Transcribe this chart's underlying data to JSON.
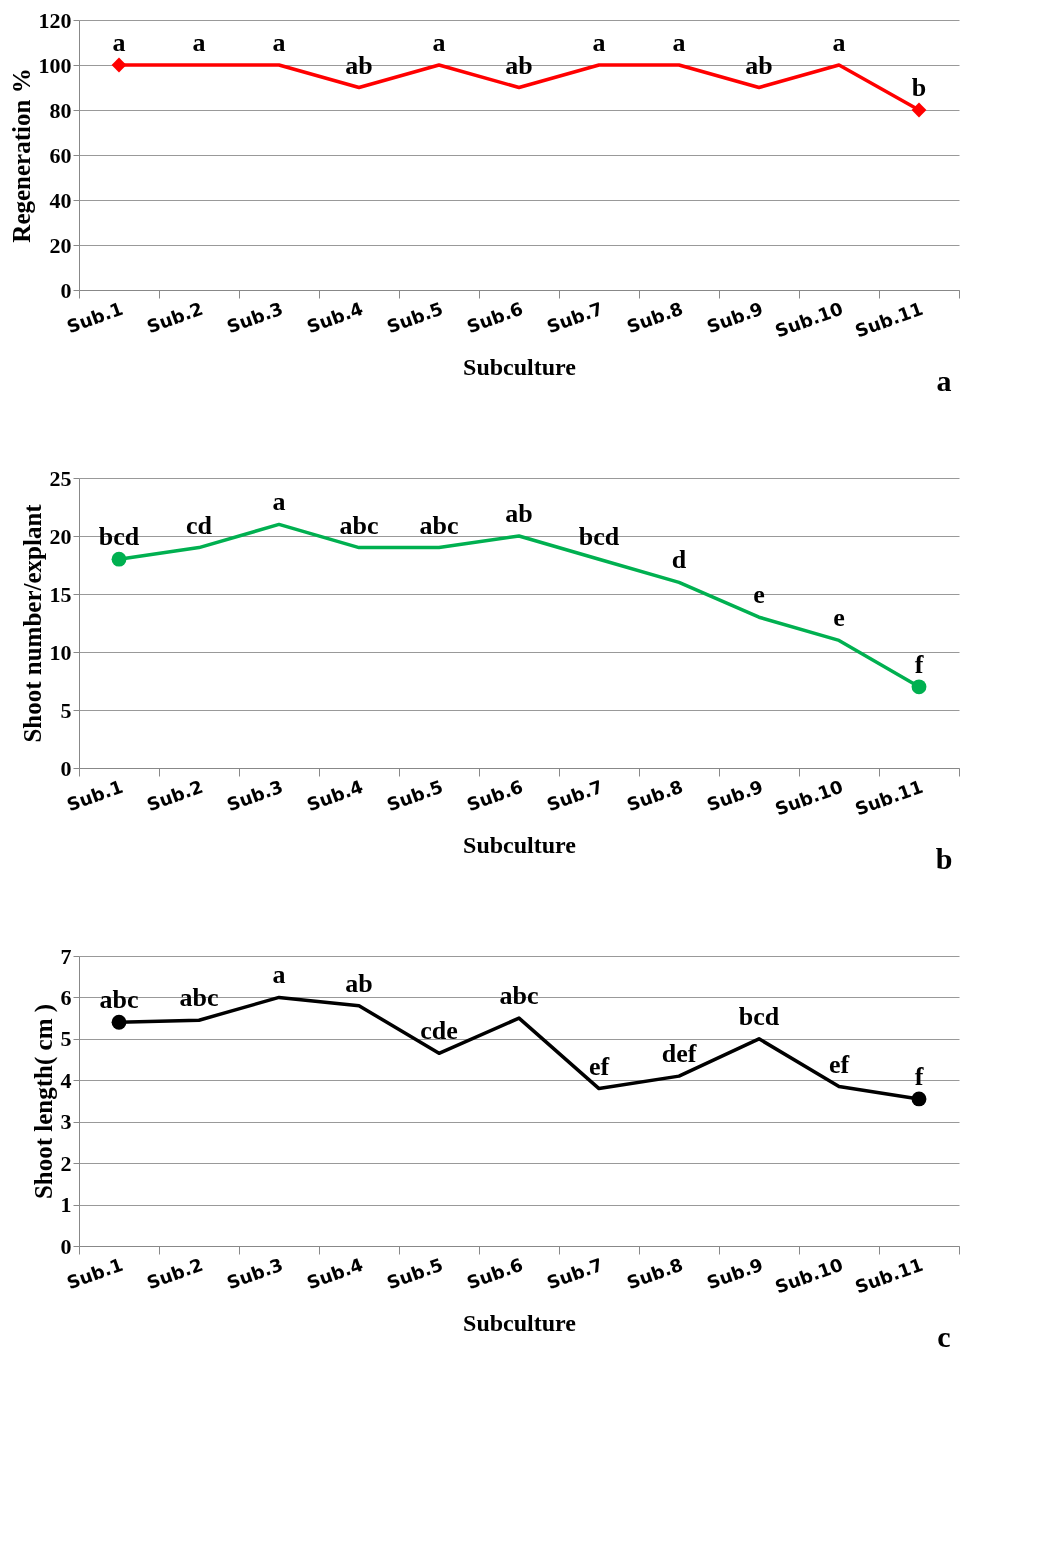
{
  "chart_data": [
    {
      "type": "line",
      "xlabel": "Subculture",
      "ylabel": "Regeneration  %",
      "categories": [
        "Sub.1",
        "Sub.2",
        "Sub.3",
        "Sub.4",
        "Sub.5",
        "Sub.6",
        "Sub.7",
        "Sub.8",
        "Sub.9",
        "Sub.10",
        "Sub.11"
      ],
      "ylim": [
        0,
        120
      ],
      "yticks": [
        0,
        20,
        40,
        60,
        80,
        100,
        120
      ],
      "grid": "y",
      "annotations": [
        "a"
      ],
      "series": [
        {
          "color": "#ff0000",
          "values": [
            100,
            100,
            100,
            90,
            100,
            90,
            100,
            100,
            90,
            100,
            80
          ],
          "value_labels": [
            "a",
            "a",
            "a",
            "ab",
            "a",
            "ab",
            "a",
            "a",
            "ab",
            "a",
            "b"
          ]
        },
        {
          "type": "scatter",
          "marker": "diamond",
          "color": "#ff0000",
          "x": [
            "Sub.1",
            "Sub.11"
          ],
          "values": [
            100,
            80
          ]
        }
      ]
    },
    {
      "type": "line",
      "xlabel": "Subculture",
      "ylabel": "Shoot number/explant",
      "categories": [
        "Sub.1",
        "Sub.2",
        "Sub.3",
        "Sub.4",
        "Sub.5",
        "Sub.6",
        "Sub.7",
        "Sub.8",
        "Sub.9",
        "Sub.10",
        "Sub.11"
      ],
      "ylim": [
        0,
        25
      ],
      "yticks": [
        0,
        5,
        10,
        15,
        20,
        25
      ],
      "grid": "y",
      "annotations": [
        "b"
      ],
      "series": [
        {
          "color": "#00b050",
          "values": [
            18,
            19,
            21,
            19,
            19,
            20,
            18,
            16,
            13,
            11,
            7
          ],
          "value_labels": [
            "bcd",
            "cd",
            "a",
            "abc",
            "abc",
            "ab",
            "bcd",
            "d",
            "e",
            "e",
            "f"
          ]
        },
        {
          "type": "scatter",
          "marker": "circle",
          "color": "#00b050",
          "x": [
            "Sub.1",
            "Sub.11"
          ],
          "values": [
            18,
            7
          ]
        }
      ]
    },
    {
      "type": "line",
      "xlabel": "Subculture",
      "ylabel": "Shoot length( cm )",
      "categories": [
        "Sub.1",
        "Sub.2",
        "Sub.3",
        "Sub.4",
        "Sub.5",
        "Sub.6",
        "Sub.7",
        "Sub.8",
        "Sub.9",
        "Sub.10",
        "Sub.11"
      ],
      "ylim": [
        0,
        7
      ],
      "yticks": [
        0,
        1,
        2,
        3,
        4,
        5,
        6,
        7
      ],
      "grid": "y",
      "annotations": [
        "c"
      ],
      "series": [
        {
          "color": "#000000",
          "values": [
            5.4,
            5.45,
            6.0,
            5.8,
            4.65,
            5.5,
            3.8,
            4.1,
            5.0,
            3.85,
            3.55
          ],
          "value_labels": [
            "abc",
            "abc",
            "a",
            "ab",
            "cde",
            "abc",
            "ef",
            "def",
            "bcd",
            "ef",
            "f"
          ]
        },
        {
          "type": "scatter",
          "marker": "circle",
          "color": "#000000",
          "x": [
            "Sub.1",
            "Sub.11"
          ],
          "values": [
            5.4,
            3.55
          ]
        }
      ]
    }
  ]
}
